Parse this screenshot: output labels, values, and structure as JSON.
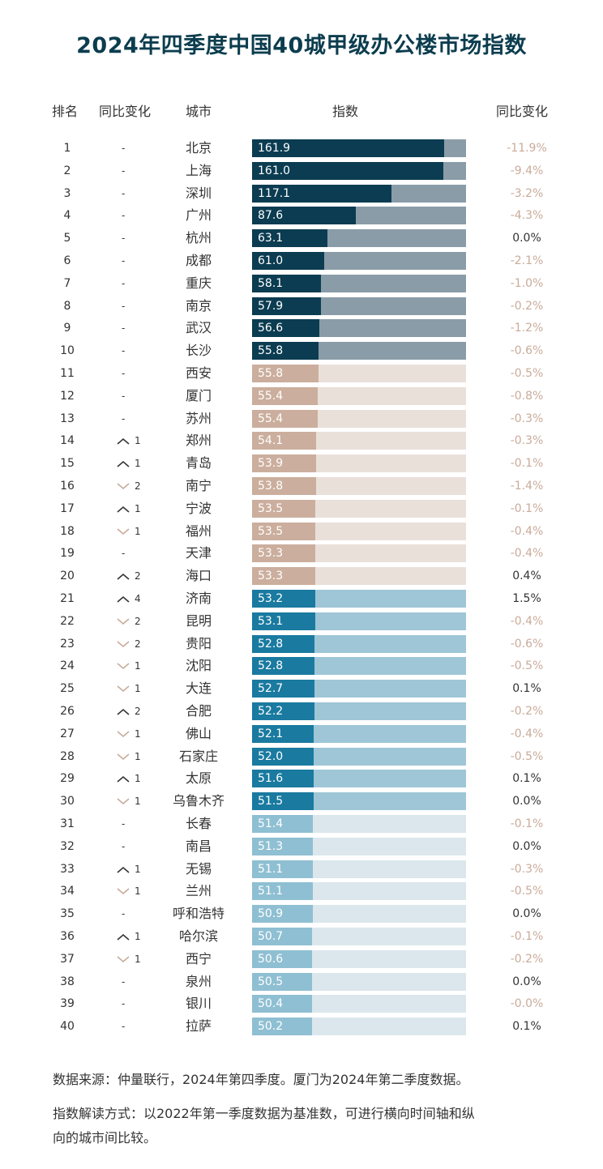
{
  "title": "2024年四季度中国40城甲级办公楼市场指数",
  "headers": {
    "rank": "排名",
    "change": "同比变化",
    "city": "城市",
    "index": "指数",
    "yoy": "同比变化"
  },
  "notes": {
    "source": "数据来源：仲量联行，2024年第四季度。厦门为2024年第二季度数据。",
    "method_line1": "指数解读方式：以2022年第一季度数据为基准数，可进行横向时间轴和纵",
    "method_line2": "向的城市间比较。"
  },
  "colors": {
    "tier1_dark": "#0b3c51",
    "tier1_light": "#8a9ca8",
    "tier2_dark": "#cbae9d",
    "tier2_light": "#eae0da",
    "tier3_dark": "#1a7aa0",
    "tier3_light": "#9ec6d7",
    "tier4_dark": "#8fbfd2",
    "tier4_light": "#dbe7ec",
    "yoy_negative": "#c9ab9a",
    "yoy_nonnegative": "#333333",
    "arrow_up": "#333333",
    "arrow_down": "#c9ab9a"
  },
  "chart_data": {
    "type": "bar",
    "title": "2024年四季度中国40城甲级办公楼市场指数",
    "xlabel": "指数",
    "ylabel": "城市",
    "xlim": [
      0,
      180
    ],
    "grid": false,
    "legend": "none",
    "rows": [
      {
        "rank": "1",
        "change_dir": "none",
        "change": "",
        "city": "北京",
        "value": 161.9,
        "value_label": "161.9",
        "yoy": "-11.9%",
        "tier": 1
      },
      {
        "rank": "2",
        "change_dir": "none",
        "change": "",
        "city": "上海",
        "value": 161.0,
        "value_label": "161.0",
        "yoy": "-9.4%",
        "tier": 1
      },
      {
        "rank": "3",
        "change_dir": "none",
        "change": "",
        "city": "深圳",
        "value": 117.1,
        "value_label": "117.1",
        "yoy": "-3.2%",
        "tier": 1
      },
      {
        "rank": "4",
        "change_dir": "none",
        "change": "",
        "city": "广州",
        "value": 87.6,
        "value_label": "87.6",
        "yoy": "-4.3%",
        "tier": 1
      },
      {
        "rank": "5",
        "change_dir": "none",
        "change": "",
        "city": "杭州",
        "value": 63.1,
        "value_label": "63.1",
        "yoy": "0.0%",
        "tier": 1
      },
      {
        "rank": "6",
        "change_dir": "none",
        "change": "",
        "city": "成都",
        "value": 61.0,
        "value_label": "61.0",
        "yoy": "-2.1%",
        "tier": 1
      },
      {
        "rank": "7",
        "change_dir": "none",
        "change": "",
        "city": "重庆",
        "value": 58.1,
        "value_label": "58.1",
        "yoy": "-1.0%",
        "tier": 1
      },
      {
        "rank": "8",
        "change_dir": "none",
        "change": "",
        "city": "南京",
        "value": 57.9,
        "value_label": "57.9",
        "yoy": "-0.2%",
        "tier": 1
      },
      {
        "rank": "9",
        "change_dir": "none",
        "change": "",
        "city": "武汉",
        "value": 56.6,
        "value_label": "56.6",
        "yoy": "-1.2%",
        "tier": 1
      },
      {
        "rank": "10",
        "change_dir": "none",
        "change": "",
        "city": "长沙",
        "value": 55.8,
        "value_label": "55.8",
        "yoy": "-0.6%",
        "tier": 1
      },
      {
        "rank": "11",
        "change_dir": "none",
        "change": "",
        "city": "西安",
        "value": 55.8,
        "value_label": "55.8",
        "yoy": "-0.5%",
        "tier": 2
      },
      {
        "rank": "12",
        "change_dir": "none",
        "change": "",
        "city": "厦门",
        "value": 55.4,
        "value_label": "55.4",
        "yoy": "-0.8%",
        "tier": 2
      },
      {
        "rank": "13",
        "change_dir": "none",
        "change": "",
        "city": "苏州",
        "value": 55.4,
        "value_label": "55.4",
        "yoy": "-0.3%",
        "tier": 2
      },
      {
        "rank": "14",
        "change_dir": "up",
        "change": "1",
        "city": "郑州",
        "value": 54.1,
        "value_label": "54.1",
        "yoy": "-0.3%",
        "tier": 2
      },
      {
        "rank": "15",
        "change_dir": "up",
        "change": "1",
        "city": "青岛",
        "value": 53.9,
        "value_label": "53.9",
        "yoy": "-0.1%",
        "tier": 2
      },
      {
        "rank": "16",
        "change_dir": "down",
        "change": "2",
        "city": "南宁",
        "value": 53.8,
        "value_label": "53.8",
        "yoy": "-1.4%",
        "tier": 2
      },
      {
        "rank": "17",
        "change_dir": "up",
        "change": "1",
        "city": "宁波",
        "value": 53.5,
        "value_label": "53.5",
        "yoy": "-0.1%",
        "tier": 2
      },
      {
        "rank": "18",
        "change_dir": "down",
        "change": "1",
        "city": "福州",
        "value": 53.5,
        "value_label": "53.5",
        "yoy": "-0.4%",
        "tier": 2
      },
      {
        "rank": "19",
        "change_dir": "none",
        "change": "",
        "city": "天津",
        "value": 53.3,
        "value_label": "53.3",
        "yoy": "-0.4%",
        "tier": 2
      },
      {
        "rank": "20",
        "change_dir": "up",
        "change": "2",
        "city": "海口",
        "value": 53.3,
        "value_label": "53.3",
        "yoy": "0.4%",
        "tier": 2
      },
      {
        "rank": "21",
        "change_dir": "up",
        "change": "4",
        "city": "济南",
        "value": 53.2,
        "value_label": "53.2",
        "yoy": "1.5%",
        "tier": 3
      },
      {
        "rank": "22",
        "change_dir": "down",
        "change": "2",
        "city": "昆明",
        "value": 53.1,
        "value_label": "53.1",
        "yoy": "-0.4%",
        "tier": 3
      },
      {
        "rank": "23",
        "change_dir": "down",
        "change": "2",
        "city": "贵阳",
        "value": 52.8,
        "value_label": "52.8",
        "yoy": "-0.6%",
        "tier": 3
      },
      {
        "rank": "24",
        "change_dir": "down",
        "change": "1",
        "city": "沈阳",
        "value": 52.8,
        "value_label": "52.8",
        "yoy": "-0.5%",
        "tier": 3
      },
      {
        "rank": "25",
        "change_dir": "down",
        "change": "1",
        "city": "大连",
        "value": 52.7,
        "value_label": "52.7",
        "yoy": "0.1%",
        "tier": 3
      },
      {
        "rank": "26",
        "change_dir": "up",
        "change": "2",
        "city": "合肥",
        "value": 52.2,
        "value_label": "52.2",
        "yoy": "-0.2%",
        "tier": 3
      },
      {
        "rank": "27",
        "change_dir": "down",
        "change": "1",
        "city": "佛山",
        "value": 52.1,
        "value_label": "52.1",
        "yoy": "-0.4%",
        "tier": 3
      },
      {
        "rank": "28",
        "change_dir": "down",
        "change": "1",
        "city": "石家庄",
        "value": 52.0,
        "value_label": "52.0",
        "yoy": "-0.5%",
        "tier": 3
      },
      {
        "rank": "29",
        "change_dir": "up",
        "change": "1",
        "city": "太原",
        "value": 51.6,
        "value_label": "51.6",
        "yoy": "0.1%",
        "tier": 3
      },
      {
        "rank": "30",
        "change_dir": "down",
        "change": "1",
        "city": "乌鲁木齐",
        "value": 51.5,
        "value_label": "51.5",
        "yoy": "0.0%",
        "tier": 3
      },
      {
        "rank": "31",
        "change_dir": "none",
        "change": "",
        "city": "长春",
        "value": 51.4,
        "value_label": "51.4",
        "yoy": "-0.1%",
        "tier": 4
      },
      {
        "rank": "32",
        "change_dir": "none",
        "change": "",
        "city": "南昌",
        "value": 51.3,
        "value_label": "51.3",
        "yoy": "0.0%",
        "tier": 4
      },
      {
        "rank": "33",
        "change_dir": "up",
        "change": "1",
        "city": "无锡",
        "value": 51.1,
        "value_label": "51.1",
        "yoy": "-0.3%",
        "tier": 4
      },
      {
        "rank": "34",
        "change_dir": "down",
        "change": "1",
        "city": "兰州",
        "value": 51.1,
        "value_label": "51.1",
        "yoy": "-0.5%",
        "tier": 4
      },
      {
        "rank": "35",
        "change_dir": "none",
        "change": "",
        "city": "呼和浩特",
        "value": 50.9,
        "value_label": "50.9",
        "yoy": "0.0%",
        "tier": 4
      },
      {
        "rank": "36",
        "change_dir": "up",
        "change": "1",
        "city": "哈尔滨",
        "value": 50.7,
        "value_label": "50.7",
        "yoy": "-0.1%",
        "tier": 4
      },
      {
        "rank": "37",
        "change_dir": "down",
        "change": "1",
        "city": "西宁",
        "value": 50.6,
        "value_label": "50.6",
        "yoy": "-0.2%",
        "tier": 4
      },
      {
        "rank": "38",
        "change_dir": "none",
        "change": "",
        "city": "泉州",
        "value": 50.5,
        "value_label": "50.5",
        "yoy": "0.0%",
        "tier": 4
      },
      {
        "rank": "39",
        "change_dir": "none",
        "change": "",
        "city": "银川",
        "value": 50.4,
        "value_label": "50.4",
        "yoy": "-0.0%",
        "tier": 4
      },
      {
        "rank": "40",
        "change_dir": "none",
        "change": "",
        "city": "拉萨",
        "value": 50.2,
        "value_label": "50.2",
        "yoy": "0.1%",
        "tier": 4
      }
    ]
  }
}
